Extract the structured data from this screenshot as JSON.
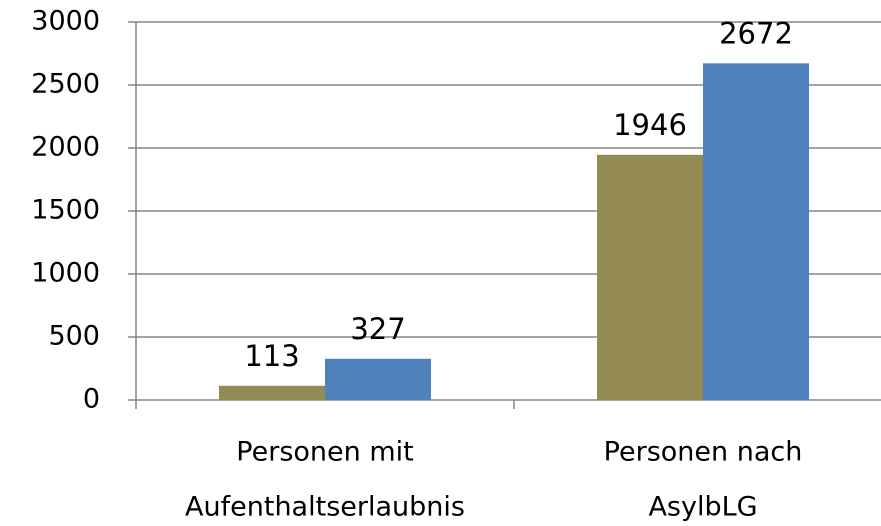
{
  "chart_data": {
    "type": "bar",
    "categories": [
      [
        "Personen mit",
        "Aufenthaltserlaubnis"
      ],
      [
        "Personen nach",
        "AsylbLG"
      ]
    ],
    "series": [
      {
        "color": "#948a54",
        "values": [
          113,
          1946
        ]
      },
      {
        "color": "#4f81bd",
        "values": [
          327,
          2672
        ]
      }
    ],
    "ylim": [
      0,
      3000
    ],
    "yticks": [
      0,
      500,
      1000,
      1500,
      2000,
      2500,
      3000
    ],
    "grid": true
  }
}
